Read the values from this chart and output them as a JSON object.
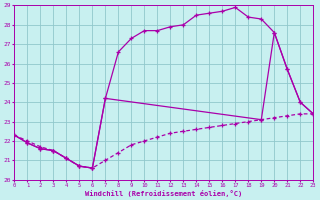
{
  "xlabel": "Windchill (Refroidissement éolien,°C)",
  "bg_color": "#c8f0f0",
  "grid_color": "#90c8cc",
  "line_color": "#aa00aa",
  "xlim": [
    0,
    23
  ],
  "ylim": [
    20,
    29
  ],
  "xticks": [
    0,
    1,
    2,
    3,
    4,
    5,
    6,
    7,
    8,
    9,
    10,
    11,
    12,
    13,
    14,
    15,
    16,
    17,
    18,
    19,
    20,
    21,
    22,
    23
  ],
  "yticks": [
    20,
    21,
    22,
    23,
    24,
    25,
    26,
    27,
    28,
    29
  ],
  "curve1_x": [
    0,
    1,
    2,
    3,
    4,
    5,
    6,
    7,
    8,
    9,
    10,
    11,
    12,
    13,
    14,
    15,
    16,
    17,
    18,
    19,
    20,
    21,
    22,
    23
  ],
  "curve1_y": [
    22.3,
    21.9,
    21.6,
    21.5,
    21.1,
    20.7,
    20.6,
    24.2,
    26.6,
    27.3,
    27.7,
    27.7,
    27.9,
    28.0,
    28.5,
    28.6,
    28.7,
    28.9,
    28.4,
    28.3,
    27.6,
    25.7,
    24.0,
    23.4
  ],
  "curve2_x": [
    0,
    1,
    2,
    3,
    4,
    5,
    6,
    7,
    8,
    9,
    10,
    11,
    12,
    13,
    14,
    15,
    16,
    17,
    18,
    19,
    20,
    21,
    22,
    23
  ],
  "curve2_y": [
    22.3,
    22.0,
    21.7,
    21.5,
    21.1,
    20.7,
    20.6,
    21.0,
    21.4,
    21.8,
    22.0,
    22.2,
    22.4,
    22.5,
    22.6,
    22.7,
    22.8,
    22.9,
    23.0,
    23.1,
    23.2,
    23.3,
    23.4,
    23.4
  ],
  "curve3_x": [
    0,
    1,
    2,
    3,
    4,
    5,
    6,
    7,
    19,
    20,
    21,
    22,
    23
  ],
  "curve3_y": [
    22.3,
    21.9,
    21.6,
    21.5,
    21.1,
    20.7,
    20.6,
    24.2,
    23.1,
    27.6,
    25.7,
    24.0,
    23.4
  ]
}
